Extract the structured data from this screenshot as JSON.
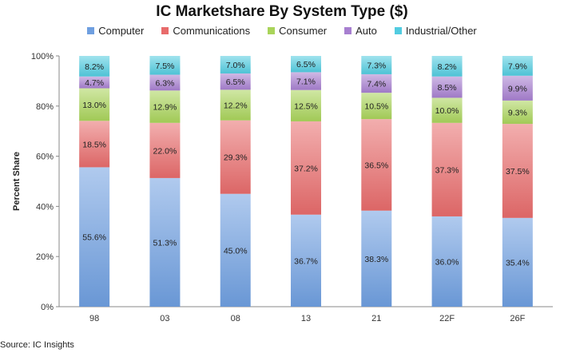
{
  "chart_data": {
    "type": "bar",
    "stacked": true,
    "title": "IC Marketshare By System Type ($)",
    "ylabel": "Percent Share",
    "xlabel": "",
    "ylim": [
      0,
      100
    ],
    "y_ticks": [
      "0%",
      "20%",
      "40%",
      "60%",
      "80%",
      "100%"
    ],
    "categories": [
      "98",
      "03",
      "08",
      "13",
      "21",
      "22F",
      "26F"
    ],
    "legend_position": "top",
    "grid": false,
    "series": [
      {
        "name": "Computer",
        "color": "#6f9fe0",
        "values": [
          55.6,
          51.3,
          45.0,
          36.7,
          38.3,
          36.0,
          35.4
        ]
      },
      {
        "name": "Communications",
        "color": "#e86b6b",
        "values": [
          18.5,
          22.0,
          29.3,
          37.2,
          36.5,
          37.3,
          37.5
        ]
      },
      {
        "name": "Consumer",
        "color": "#a9d45a",
        "values": [
          13.0,
          12.9,
          12.2,
          12.5,
          10.5,
          10.0,
          9.3
        ]
      },
      {
        "name": "Auto",
        "color": "#a77fd0",
        "values": [
          4.7,
          6.3,
          6.5,
          7.1,
          7.4,
          8.5,
          9.9
        ]
      },
      {
        "name": "Industrial/Other",
        "color": "#52cce0",
        "values": [
          8.2,
          7.5,
          7.0,
          6.5,
          7.3,
          8.2,
          7.9
        ]
      }
    ]
  },
  "source_note": "Source: IC Insights"
}
